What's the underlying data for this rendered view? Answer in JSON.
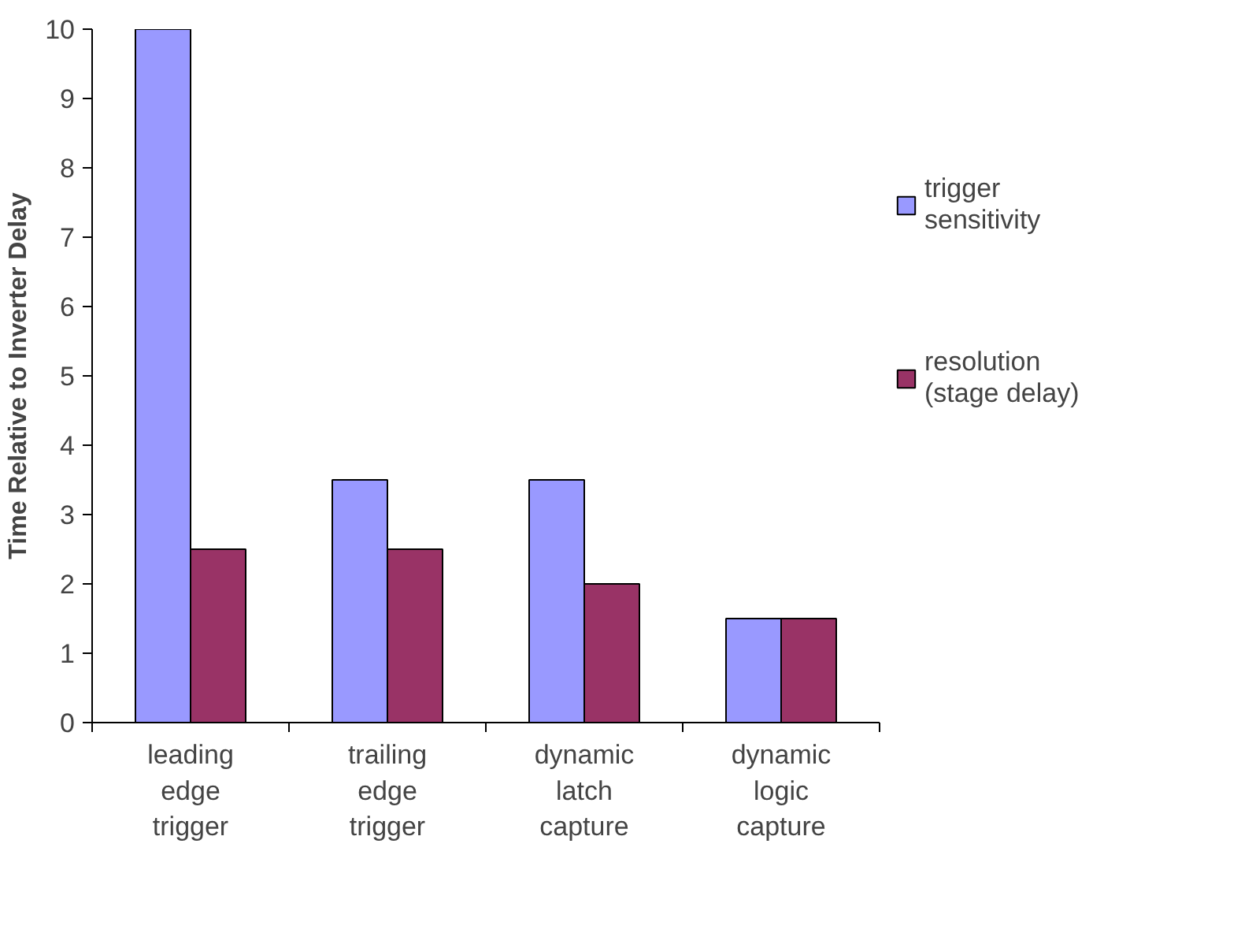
{
  "chart_data": {
    "type": "bar",
    "ylabel": "Time Relative to Inverter Delay",
    "categories": [
      "leading edge trigger",
      "trailing edge trigger",
      "dynamic latch capture",
      "dynamic logic capture"
    ],
    "series": [
      {
        "name": "trigger sensitivity",
        "color": "#9999ff",
        "values": [
          10,
          3.5,
          3.5,
          1.5
        ]
      },
      {
        "name": "resolution (stage delay)",
        "color": "#993366",
        "values": [
          2.5,
          2.5,
          2.0,
          1.5
        ]
      }
    ],
    "ylim": [
      0,
      10
    ],
    "yticks": [
      0,
      1,
      2,
      3,
      4,
      5,
      6,
      7,
      8,
      9,
      10
    ],
    "grid": false,
    "legend": "right"
  }
}
